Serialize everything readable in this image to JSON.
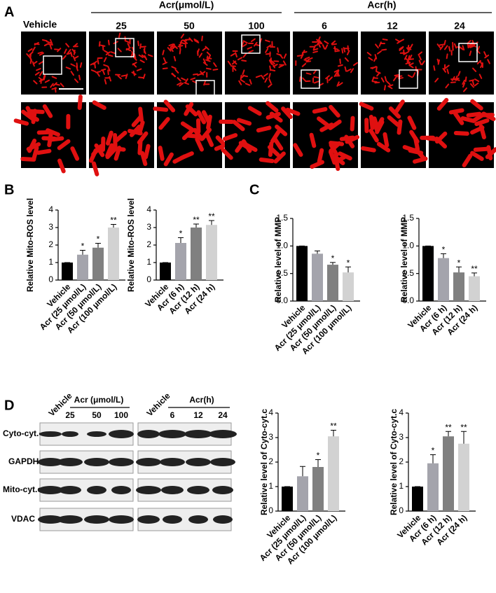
{
  "panels": [
    "A",
    "B",
    "C",
    "D"
  ],
  "imaging": {
    "vehicle": "Vehicle",
    "dose_header": "Acr(μmol/L)",
    "doses": [
      "25",
      "50",
      "100"
    ],
    "time_header": "Acr(h)",
    "times": [
      "6",
      "12",
      "24"
    ]
  },
  "blot": {
    "vehicle": "Vehicle",
    "dose_header": "Acr (μmol/L)",
    "doses": [
      "25",
      "50",
      "100"
    ],
    "time_header": "Acr(h)",
    "times": [
      "6",
      "12",
      "24"
    ],
    "rows": [
      "Cyto-cyt.c",
      "GAPDH",
      "Mito-cyt.c",
      "VDAC"
    ]
  },
  "chart_data": [
    {
      "type": "bar",
      "ylabel": "Relative Mito-ROS level",
      "categories": [
        "Vehicle",
        "Acr (25 μmol/L)",
        "Acr (50 μmol/L)",
        "Acr (100 μmol/L)"
      ],
      "values": [
        1,
        1.45,
        1.85,
        3.0
      ],
      "errors": [
        0,
        0.25,
        0.25,
        0.18
      ],
      "significance": [
        null,
        "*",
        "*",
        "**"
      ],
      "colors": [
        "#000000",
        "#a4a4ac",
        "#808080",
        "#d2d2d2"
      ],
      "ylim": [
        0,
        4
      ],
      "yticks": [
        0,
        1,
        2,
        3,
        4
      ]
    },
    {
      "type": "bar",
      "ylabel": "Relative Mito-ROS level",
      "categories": [
        "Vehicle",
        "Acr (6 h)",
        "Acr (12 h)",
        "Acr (24 h)"
      ],
      "values": [
        1,
        2.12,
        3.0,
        3.15
      ],
      "errors": [
        0,
        0.3,
        0.2,
        0.25
      ],
      "significance": [
        null,
        "*",
        "**",
        "**"
      ],
      "colors": [
        "#000000",
        "#a4a4ac",
        "#808080",
        "#d2d2d2"
      ],
      "ylim": [
        0,
        4
      ],
      "yticks": [
        0,
        1,
        2,
        3,
        4
      ]
    },
    {
      "type": "bar",
      "ylabel": "Relative  level of MMP",
      "categories": [
        "Vehicle",
        "Acr (25 μmol/L)",
        "Acr (50 μmol/L)",
        "Acr (100 μmol/L)"
      ],
      "values": [
        1.0,
        0.86,
        0.66,
        0.52
      ],
      "errors": [
        0,
        0.05,
        0.04,
        0.1
      ],
      "significance": [
        null,
        null,
        "*",
        "*"
      ],
      "colors": [
        "#000000",
        "#a4a4ac",
        "#808080",
        "#d2d2d2"
      ],
      "ylim": [
        0,
        1.5
      ],
      "yticks": [
        {
          "value": 0,
          "label": "0.0"
        },
        0.5,
        {
          "value": 1,
          "label": "1.0"
        },
        1.5
      ]
    },
    {
      "type": "bar",
      "ylabel": "Relative  level of MMP",
      "categories": [
        "Vehicle",
        "Acr (6 h)",
        "Acr (12 h)",
        "Acr (24 h)"
      ],
      "values": [
        1.0,
        0.78,
        0.52,
        0.45
      ],
      "errors": [
        0,
        0.08,
        0.1,
        0.06
      ],
      "significance": [
        null,
        "*",
        "*",
        "**"
      ],
      "colors": [
        "#000000",
        "#a4a4ac",
        "#808080",
        "#d2d2d2"
      ],
      "ylim": [
        0,
        1.5
      ],
      "yticks": [
        {
          "value": 0,
          "label": "0.0"
        },
        0.5,
        {
          "value": 1,
          "label": "1.0"
        },
        1.5
      ]
    },
    {
      "type": "bar",
      "ylabel": "Relative level of Cyto-cyt.c",
      "categories": [
        "Vehicle",
        "Acr (25 μmol/L)",
        "Acr (50 μmol/L)",
        "Acr (100 μmol/L)"
      ],
      "values": [
        1,
        1.42,
        1.8,
        3.05
      ],
      "errors": [
        0,
        0.4,
        0.3,
        0.25
      ],
      "significance": [
        null,
        null,
        "*",
        "**"
      ],
      "colors": [
        "#000000",
        "#a4a4ac",
        "#808080",
        "#d2d2d2"
      ],
      "ylim": [
        0,
        4
      ],
      "yticks": [
        0,
        1,
        2,
        3,
        4
      ]
    },
    {
      "type": "bar",
      "ylabel": "Relative level of Cyto-cyt.c",
      "categories": [
        "Vehicle",
        "Acr (6 h)",
        "Acr (12 h)",
        "Acr (24 h)"
      ],
      "values": [
        1,
        1.95,
        3.05,
        2.75
      ],
      "errors": [
        0,
        0.35,
        0.2,
        0.5
      ],
      "significance": [
        null,
        "*",
        "**",
        "**"
      ],
      "colors": [
        "#000000",
        "#a4a4ac",
        "#808080",
        "#d2d2d2"
      ],
      "ylim": [
        0,
        4
      ],
      "yticks": [
        0,
        1,
        2,
        3,
        4
      ]
    }
  ]
}
